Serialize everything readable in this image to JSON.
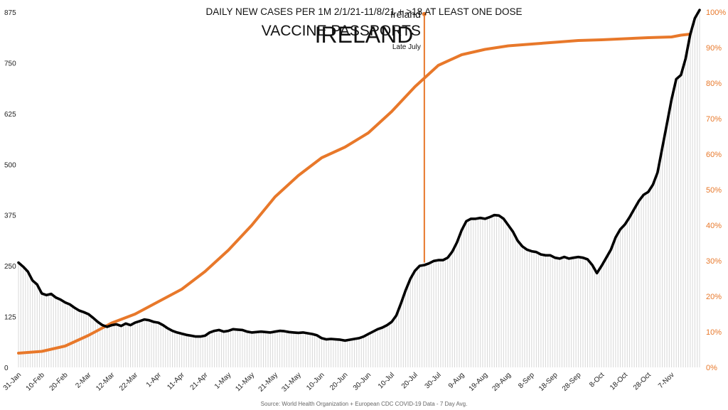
{
  "chart_data": {
    "type": "line",
    "title": "DAILY NEW CASES PER 1M 2/1/21-11/8/21 + >18 AT LEAST ONE DOSE",
    "subtitle": "IRELAND",
    "source": "Source: World Health Organization + European CDC COVID-19 Data - 7 Day Avg.",
    "x_tick_labels": [
      "31-Jan",
      "10-Feb",
      "20-Feb",
      "2-Mar",
      "12-Mar",
      "22-Mar",
      "1-Apr",
      "11-Apr",
      "21-Apr",
      "1-May",
      "11-May",
      "21-May",
      "31-May",
      "10-Jun",
      "20-Jun",
      "30-Jun",
      "10-Jul",
      "20-Jul",
      "30-Jul",
      "9-Aug",
      "19-Aug",
      "29-Aug",
      "8-Sep",
      "18-Sep",
      "28-Sep",
      "8-Oct",
      "18-Oct",
      "28-Oct",
      "7-Nov"
    ],
    "y_left": {
      "ylim": [
        0,
        875
      ],
      "ticks": [
        0,
        125,
        250,
        375,
        500,
        625,
        750,
        875
      ]
    },
    "y_right": {
      "ylim": [
        0,
        100
      ],
      "ticks": [
        "0%",
        "10%",
        "20%",
        "30%",
        "40%",
        "50%",
        "60%",
        "70%",
        "80%",
        "90%",
        "100%"
      ]
    },
    "series": [
      {
        "id": "cases",
        "color": "#000000",
        "points": [
          [
            "31-Jan",
            258
          ],
          [
            "2-Feb",
            248
          ],
          [
            "4-Feb",
            236
          ],
          [
            "6-Feb",
            214
          ],
          [
            "8-Feb",
            204
          ],
          [
            "10-Feb",
            182
          ],
          [
            "12-Feb",
            178
          ],
          [
            "14-Feb",
            181
          ],
          [
            "16-Feb",
            172
          ],
          [
            "18-Feb",
            167
          ],
          [
            "20-Feb",
            160
          ],
          [
            "22-Feb",
            155
          ],
          [
            "24-Feb",
            147
          ],
          [
            "26-Feb",
            140
          ],
          [
            "28-Feb",
            136
          ],
          [
            "2-Mar",
            131
          ],
          [
            "4-Mar",
            122
          ],
          [
            "6-Mar",
            112
          ],
          [
            "8-Mar",
            104
          ],
          [
            "10-Mar",
            100
          ],
          [
            "12-Mar",
            104
          ],
          [
            "14-Mar",
            106
          ],
          [
            "16-Mar",
            102
          ],
          [
            "18-Mar",
            108
          ],
          [
            "20-Mar",
            104
          ],
          [
            "22-Mar",
            110
          ],
          [
            "24-Mar",
            114
          ],
          [
            "26-Mar",
            118
          ],
          [
            "28-Mar",
            116
          ],
          [
            "30-Mar",
            112
          ],
          [
            "1-Apr",
            110
          ],
          [
            "3-Apr",
            104
          ],
          [
            "5-Apr",
            96
          ],
          [
            "7-Apr",
            90
          ],
          [
            "9-Apr",
            86
          ],
          [
            "11-Apr",
            83
          ],
          [
            "13-Apr",
            80
          ],
          [
            "15-Apr",
            78
          ],
          [
            "17-Apr",
            76
          ],
          [
            "19-Apr",
            76
          ],
          [
            "21-Apr",
            78
          ],
          [
            "23-Apr",
            86
          ],
          [
            "25-Apr",
            90
          ],
          [
            "27-Apr",
            92
          ],
          [
            "29-Apr",
            88
          ],
          [
            "1-May",
            90
          ],
          [
            "3-May",
            94
          ],
          [
            "5-May",
            93
          ],
          [
            "7-May",
            92
          ],
          [
            "9-May",
            88
          ],
          [
            "11-May",
            86
          ],
          [
            "13-May",
            87
          ],
          [
            "15-May",
            88
          ],
          [
            "17-May",
            87
          ],
          [
            "19-May",
            86
          ],
          [
            "21-May",
            88
          ],
          [
            "23-May",
            90
          ],
          [
            "25-May",
            89
          ],
          [
            "27-May",
            87
          ],
          [
            "29-May",
            86
          ],
          [
            "31-May",
            85
          ],
          [
            "2-Jun",
            86
          ],
          [
            "4-Jun",
            84
          ],
          [
            "6-Jun",
            82
          ],
          [
            "8-Jun",
            79
          ],
          [
            "10-Jun",
            72
          ],
          [
            "12-Jun",
            69
          ],
          [
            "14-Jun",
            70
          ],
          [
            "16-Jun",
            69
          ],
          [
            "18-Jun",
            68
          ],
          [
            "20-Jun",
            66
          ],
          [
            "22-Jun",
            68
          ],
          [
            "24-Jun",
            70
          ],
          [
            "26-Jun",
            72
          ],
          [
            "28-Jun",
            76
          ],
          [
            "30-Jun",
            82
          ],
          [
            "2-Jul",
            88
          ],
          [
            "4-Jul",
            94
          ],
          [
            "6-Jul",
            98
          ],
          [
            "8-Jul",
            104
          ],
          [
            "10-Jul",
            112
          ],
          [
            "12-Jul",
            128
          ],
          [
            "14-Jul",
            158
          ],
          [
            "16-Jul",
            190
          ],
          [
            "18-Jul",
            218
          ],
          [
            "20-Jul",
            238
          ],
          [
            "22-Jul",
            250
          ],
          [
            "24-Jul",
            252
          ],
          [
            "26-Jul",
            256
          ],
          [
            "28-Jul",
            262
          ],
          [
            "30-Jul",
            264
          ],
          [
            "1-Aug",
            264
          ],
          [
            "3-Aug",
            270
          ],
          [
            "5-Aug",
            285
          ],
          [
            "7-Aug",
            308
          ],
          [
            "9-Aug",
            338
          ],
          [
            "11-Aug",
            360
          ],
          [
            "13-Aug",
            366
          ],
          [
            "15-Aug",
            366
          ],
          [
            "17-Aug",
            368
          ],
          [
            "19-Aug",
            366
          ],
          [
            "21-Aug",
            370
          ],
          [
            "23-Aug",
            375
          ],
          [
            "25-Aug",
            374
          ],
          [
            "27-Aug",
            366
          ],
          [
            "29-Aug",
            350
          ],
          [
            "31-Aug",
            334
          ],
          [
            "2-Sep",
            312
          ],
          [
            "4-Sep",
            298
          ],
          [
            "6-Sep",
            290
          ],
          [
            "8-Sep",
            286
          ],
          [
            "10-Sep",
            284
          ],
          [
            "12-Sep",
            278
          ],
          [
            "14-Sep",
            276
          ],
          [
            "16-Sep",
            276
          ],
          [
            "18-Sep",
            270
          ],
          [
            "20-Sep",
            268
          ],
          [
            "22-Sep",
            272
          ],
          [
            "24-Sep",
            268
          ],
          [
            "26-Sep",
            270
          ],
          [
            "28-Sep",
            272
          ],
          [
            "30-Sep",
            270
          ],
          [
            "2-Oct",
            266
          ],
          [
            "4-Oct",
            252
          ],
          [
            "6-Oct",
            232
          ],
          [
            "8-Oct",
            250
          ],
          [
            "10-Oct",
            270
          ],
          [
            "12-Oct",
            290
          ],
          [
            "14-Oct",
            320
          ],
          [
            "16-Oct",
            340
          ],
          [
            "18-Oct",
            352
          ],
          [
            "20-Oct",
            370
          ],
          [
            "22-Oct",
            390
          ],
          [
            "24-Oct",
            410
          ],
          [
            "26-Oct",
            425
          ],
          [
            "28-Oct",
            432
          ],
          [
            "30-Oct",
            450
          ],
          [
            "1-Nov",
            480
          ],
          [
            "3-Nov",
            540
          ],
          [
            "5-Nov",
            600
          ],
          [
            "7-Nov",
            660
          ],
          [
            "9-Nov",
            710
          ],
          [
            "11-Nov",
            720
          ],
          [
            "13-Nov",
            760
          ],
          [
            "15-Nov",
            820
          ],
          [
            "17-Nov",
            860
          ],
          [
            "19-Nov",
            880
          ]
        ]
      },
      {
        "id": "first_dose",
        "color": "#E8782A",
        "axis": "right",
        "points": [
          [
            "31-Jan",
            4
          ],
          [
            "10-Feb",
            4.5
          ],
          [
            "20-Feb",
            6
          ],
          [
            "2-Mar",
            9
          ],
          [
            "12-Mar",
            12.5
          ],
          [
            "22-Mar",
            15
          ],
          [
            "1-Apr",
            18.5
          ],
          [
            "11-Apr",
            22
          ],
          [
            "21-Apr",
            27
          ],
          [
            "1-May",
            33
          ],
          [
            "11-May",
            40
          ],
          [
            "21-May",
            48
          ],
          [
            "31-May",
            54
          ],
          [
            "10-Jun",
            59
          ],
          [
            "20-Jun",
            62
          ],
          [
            "30-Jun",
            66
          ],
          [
            "10-Jul",
            72
          ],
          [
            "20-Jul",
            79
          ],
          [
            "30-Jul",
            85
          ],
          [
            "9-Aug",
            88
          ],
          [
            "19-Aug",
            89.5
          ],
          [
            "29-Aug",
            90.5
          ],
          [
            "8-Sep",
            91
          ],
          [
            "18-Sep",
            91.5
          ],
          [
            "28-Sep",
            92
          ],
          [
            "8-Oct",
            92.2
          ],
          [
            "18-Oct",
            92.5
          ],
          [
            "28-Oct",
            92.8
          ],
          [
            "7-Nov",
            93
          ],
          [
            "11-Nov",
            93.5
          ],
          [
            "15-Nov",
            93.8
          ]
        ]
      }
    ],
    "annotation": {
      "x": "24-Jul",
      "y_top": 870,
      "y_bottom": 258,
      "line1": "Ireland",
      "line2": "VACCINE PASSPORTS",
      "line3": "Late July",
      "color": "#E8782A"
    }
  }
}
